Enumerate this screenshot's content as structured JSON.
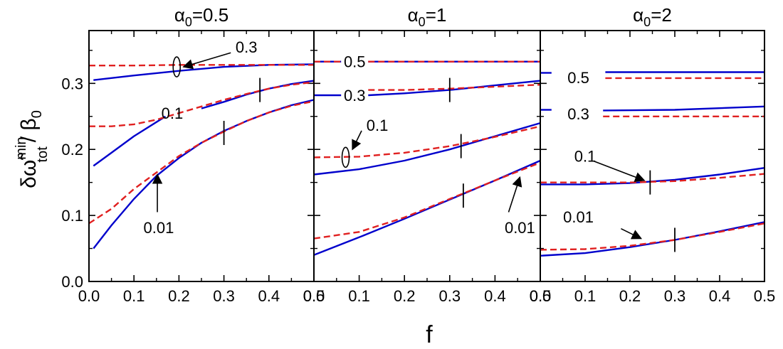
{
  "figure": {
    "ylabel_main": "δω̃",
    "ylabel_sup": "min",
    "ylabel_sub": "tot",
    "ylabel_rest": "/ β",
    "ylabel_rest_sub": "0",
    "xlabel": "f"
  },
  "chart_data": [
    {
      "type": "line",
      "title_prefix": "α",
      "title_sub": "0",
      "title_suffix": "=0.5",
      "xlim": [
        0,
        0.5
      ],
      "ylim": [
        0,
        0.38
      ],
      "xticks": [
        "0.0",
        "0.1",
        "0.2",
        "0.3",
        "0.4",
        "0.5"
      ],
      "yticks": [
        "0.0",
        "0.1",
        "0.2",
        "0.3"
      ],
      "series_style": {
        "solid": "#0000cc",
        "dashed": "#e02020"
      },
      "series": [
        {
          "style": "solid",
          "x": [
            0.01,
            0.1,
            0.2,
            0.3,
            0.4,
            0.5
          ],
          "y": [
            0.305,
            0.312,
            0.319,
            0.325,
            0.328,
            0.329
          ]
        },
        {
          "style": "dashed",
          "x": [
            0.0,
            0.1,
            0.2,
            0.3,
            0.4,
            0.5
          ],
          "y": [
            0.327,
            0.327,
            0.328,
            0.328,
            0.328,
            0.328
          ]
        },
        {
          "style": "solid",
          "x": [
            0.01,
            0.05,
            0.1,
            0.17
          ],
          "y": [
            0.175,
            0.195,
            0.22,
            0.25
          ]
        },
        {
          "style": "solid",
          "x": [
            0.25,
            0.3,
            0.35,
            0.4,
            0.45,
            0.5
          ],
          "y": [
            0.262,
            0.272,
            0.283,
            0.292,
            0.299,
            0.304
          ]
        },
        {
          "style": "dashed",
          "x": [
            0.0,
            0.05,
            0.1,
            0.15,
            0.2,
            0.25,
            0.3,
            0.35,
            0.4,
            0.45,
            0.5
          ],
          "y": [
            0.235,
            0.235,
            0.238,
            0.245,
            0.255,
            0.265,
            0.275,
            0.284,
            0.292,
            0.298,
            0.302
          ]
        },
        {
          "style": "solid",
          "x": [
            0.01,
            0.05,
            0.1,
            0.15,
            0.2,
            0.25,
            0.3,
            0.35,
            0.4,
            0.45,
            0.5
          ],
          "y": [
            0.05,
            0.085,
            0.125,
            0.16,
            0.187,
            0.21,
            0.228,
            0.243,
            0.256,
            0.267,
            0.275
          ]
        },
        {
          "style": "dashed",
          "x": [
            0.0,
            0.05,
            0.1,
            0.15,
            0.2,
            0.25,
            0.3,
            0.35,
            0.4,
            0.45,
            0.5
          ],
          "y": [
            0.088,
            0.11,
            0.14,
            0.165,
            0.19,
            0.21,
            0.227,
            0.243,
            0.256,
            0.266,
            0.273
          ]
        }
      ],
      "markers": [
        {
          "x": 0.38,
          "y": 0.29
        },
        {
          "x": 0.3,
          "y": 0.225
        }
      ],
      "annotations": [
        {
          "text": "0.3",
          "x": 0.35,
          "y": 0.355,
          "arrow_to": [
            0.21,
            0.325
          ],
          "loop": [
            0.195,
            0.325
          ]
        },
        {
          "text": "0.1",
          "x": 0.185,
          "y": 0.255
        },
        {
          "text": "0.01",
          "x": 0.155,
          "y": 0.082,
          "arrow_from": [
            0.152,
            0.105
          ],
          "arrow_to": [
            0.152,
            0.162
          ]
        }
      ]
    },
    {
      "type": "line",
      "title_prefix": "α",
      "title_sub": "0",
      "title_suffix": "=1",
      "xlim": [
        0,
        0.5
      ],
      "ylim": [
        0,
        0.38
      ],
      "xticks": [
        "0.0",
        "0.1",
        "0.2",
        "0.3",
        "0.4",
        "0.5"
      ],
      "yticks": [
        "0.0",
        "0.1",
        "0.2",
        "0.3"
      ],
      "series_style": {
        "solid": "#0000cc",
        "dashed": "#e02020"
      },
      "series": [
        {
          "style": "solid",
          "x": [
            0.0,
            0.06
          ],
          "y": [
            0.333,
            0.333
          ]
        },
        {
          "style": "solid",
          "x": [
            0.12,
            0.5
          ],
          "y": [
            0.333,
            0.333
          ]
        },
        {
          "style": "dashed",
          "x": [
            0.0,
            0.06
          ],
          "y": [
            0.333,
            0.333
          ]
        },
        {
          "style": "dashed",
          "x": [
            0.12,
            0.5
          ],
          "y": [
            0.333,
            0.333
          ]
        },
        {
          "style": "solid",
          "x": [
            0.0,
            0.06
          ],
          "y": [
            0.282,
            0.282
          ]
        },
        {
          "style": "solid",
          "x": [
            0.12,
            0.2,
            0.3,
            0.4,
            0.5
          ],
          "y": [
            0.282,
            0.285,
            0.29,
            0.297,
            0.304
          ]
        },
        {
          "style": "dashed",
          "x": [
            0.12,
            0.2,
            0.3,
            0.4,
            0.5
          ],
          "y": [
            0.29,
            0.29,
            0.292,
            0.295,
            0.298
          ]
        },
        {
          "style": "solid",
          "x": [
            0.0,
            0.1,
            0.2,
            0.3,
            0.4,
            0.5
          ],
          "y": [
            0.162,
            0.17,
            0.183,
            0.2,
            0.22,
            0.24
          ]
        },
        {
          "style": "dashed",
          "x": [
            0.0,
            0.1,
            0.2,
            0.3,
            0.4,
            0.5
          ],
          "y": [
            0.188,
            0.189,
            0.195,
            0.205,
            0.219,
            0.235
          ]
        },
        {
          "style": "solid",
          "x": [
            0.0,
            0.1,
            0.2,
            0.3,
            0.4,
            0.5
          ],
          "y": [
            0.04,
            0.067,
            0.095,
            0.124,
            0.153,
            0.183
          ]
        },
        {
          "style": "dashed",
          "x": [
            0.0,
            0.1,
            0.2,
            0.3,
            0.4,
            0.5
          ],
          "y": [
            0.065,
            0.075,
            0.097,
            0.125,
            0.153,
            0.18
          ]
        }
      ],
      "markers": [
        {
          "x": 0.3,
          "y": 0.29
        },
        {
          "x": 0.325,
          "y": 0.205
        },
        {
          "x": 0.33,
          "y": 0.13
        }
      ],
      "annotations": [
        {
          "text": "0.5",
          "x": 0.09,
          "y": 0.333
        },
        {
          "text": "0.3",
          "x": 0.09,
          "y": 0.282
        },
        {
          "text": "0.1",
          "x": 0.14,
          "y": 0.237,
          "arrow_to": [
            0.085,
            0.2
          ],
          "loop": [
            0.07,
            0.188
          ]
        },
        {
          "text": "0.01",
          "x": 0.455,
          "y": 0.082,
          "arrow_from": [
            0.43,
            0.105
          ],
          "arrow_to": [
            0.455,
            0.158
          ]
        }
      ]
    },
    {
      "type": "line",
      "title_prefix": "α",
      "title_sub": "0",
      "title_suffix": "=2",
      "xlim": [
        0,
        0.5
      ],
      "ylim": [
        0,
        0.38
      ],
      "xticks": [
        "0.0",
        "0.1",
        "0.2",
        "0.3",
        "0.4",
        "0.5"
      ],
      "yticks": [
        "0.0",
        "0.1",
        "0.2",
        "0.3"
      ],
      "series_style": {
        "solid": "#0000cc",
        "dashed": "#e02020"
      },
      "series": [
        {
          "style": "solid",
          "x": [
            0.0,
            0.025
          ],
          "y": [
            0.316,
            0.316
          ]
        },
        {
          "style": "solid",
          "x": [
            0.145,
            0.5
          ],
          "y": [
            0.317,
            0.317
          ]
        },
        {
          "style": "dashed",
          "x": [
            0.145,
            0.5
          ],
          "y": [
            0.308,
            0.308
          ]
        },
        {
          "style": "solid",
          "x": [
            0.0,
            0.025
          ],
          "y": [
            0.26,
            0.26
          ]
        },
        {
          "style": "solid",
          "x": [
            0.14,
            0.3,
            0.5
          ],
          "y": [
            0.259,
            0.26,
            0.265
          ]
        },
        {
          "style": "dashed",
          "x": [
            0.14,
            0.3,
            0.5
          ],
          "y": [
            0.25,
            0.25,
            0.25
          ]
        },
        {
          "style": "solid",
          "x": [
            0.0,
            0.1,
            0.2,
            0.3,
            0.4,
            0.5
          ],
          "y": [
            0.147,
            0.147,
            0.149,
            0.154,
            0.162,
            0.172
          ]
        },
        {
          "style": "dashed",
          "x": [
            0.0,
            0.1,
            0.2,
            0.3,
            0.4,
            0.5
          ],
          "y": [
            0.15,
            0.15,
            0.15,
            0.152,
            0.157,
            0.163
          ]
        },
        {
          "style": "solid",
          "x": [
            0.0,
            0.1,
            0.2,
            0.3,
            0.4,
            0.5
          ],
          "y": [
            0.039,
            0.043,
            0.052,
            0.063,
            0.076,
            0.09
          ]
        },
        {
          "style": "dashed",
          "x": [
            0.0,
            0.1,
            0.2,
            0.3,
            0.4,
            0.5
          ],
          "y": [
            0.048,
            0.049,
            0.054,
            0.063,
            0.075,
            0.088
          ]
        }
      ],
      "markers": [
        {
          "x": 0.245,
          "y": 0.15
        },
        {
          "x": 0.3,
          "y": 0.063
        }
      ],
      "annotations": [
        {
          "text": "0.5",
          "x": 0.085,
          "y": 0.309
        },
        {
          "text": "0.3",
          "x": 0.085,
          "y": 0.254
        },
        {
          "text": "0.1",
          "x": 0.1,
          "y": 0.19,
          "arrow_from": [
            0.12,
            0.182
          ],
          "arrow_to": [
            0.232,
            0.153
          ]
        },
        {
          "text": "0.01",
          "x": 0.085,
          "y": 0.098,
          "arrow_from": [
            0.18,
            0.08
          ],
          "arrow_to": [
            0.225,
            0.065
          ]
        }
      ]
    }
  ]
}
